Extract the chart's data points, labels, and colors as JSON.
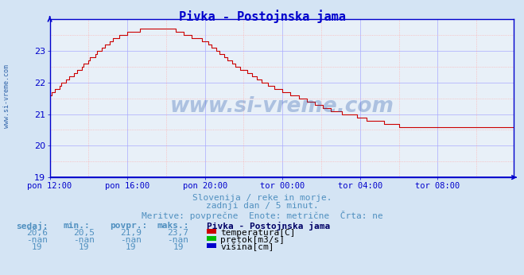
{
  "title": "Pivka - Postojnska jama",
  "title_color": "#0000cc",
  "bg_color": "#d4e4f4",
  "plot_bg_color": "#e8f0f8",
  "grid_color_major": "#aaaaff",
  "grid_color_minor": "#ffaaaa",
  "line_color_temp": "#cc0000",
  "line_color_axis": "#0000cc",
  "ylim": [
    19,
    24
  ],
  "yticks": [
    19,
    20,
    21,
    22,
    23
  ],
  "xtick_labels": [
    "pon 12:00",
    "pon 16:00",
    "pon 20:00",
    "tor 00:00",
    "tor 04:00",
    "tor 08:00"
  ],
  "xtick_pos": [
    0,
    48,
    96,
    144,
    192,
    240
  ],
  "n_points": 288,
  "text1": "Slovenija / reke in morje.",
  "text2": "zadnji dan / 5 minut.",
  "text3": "Meritve: povprečne  Enote: metrične  Črta: ne",
  "text_color": "#5090c0",
  "table_headers": [
    "sedaj:",
    "min.:",
    "povpr.:",
    "maks.:"
  ],
  "table_row1": [
    "20,6",
    "20,5",
    "21,9",
    "23,7"
  ],
  "table_row2": [
    "-nan",
    "-nan",
    "-nan",
    "-nan"
  ],
  "table_row3": [
    "19",
    "19",
    "19",
    "19"
  ],
  "legend_title": "Pivka - Postojnska jama",
  "legend_items": [
    "temperatura[C]",
    "pretok[m3/s]",
    "višina[cm]"
  ],
  "legend_colors": [
    "#cc0000",
    "#00bb00",
    "#0000cc"
  ],
  "watermark": "www.si-vreme.com",
  "watermark_color": "#2255aa",
  "watermark_alpha": 0.3,
  "sidebar_text": "www.si-vreme.com",
  "sidebar_color": "#3366aa",
  "header_col_color": "#5090c0",
  "data_col_color": "#5090c0",
  "legend_title_color": "#000066"
}
